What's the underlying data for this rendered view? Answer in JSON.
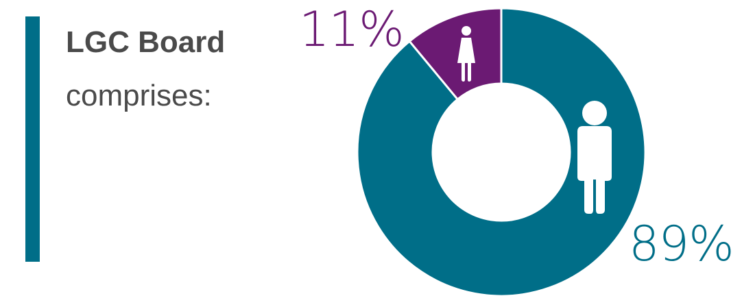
{
  "heading": "LGC Board",
  "subheading": "comprises:",
  "colors": {
    "accent": "#006e88",
    "male": "#006e88",
    "female": "#6b1a73",
    "text": "#4a4a4a"
  },
  "chart_data": {
    "type": "pie",
    "title": "",
    "donut": true,
    "series": [
      {
        "name": "",
        "value": 89,
        "label": "89%",
        "color": "#006e88",
        "icon": "male-figure-icon"
      },
      {
        "name": "",
        "value": 11,
        "label": "11%",
        "color": "#6b1a73",
        "icon": "female-figure-icon"
      }
    ]
  }
}
